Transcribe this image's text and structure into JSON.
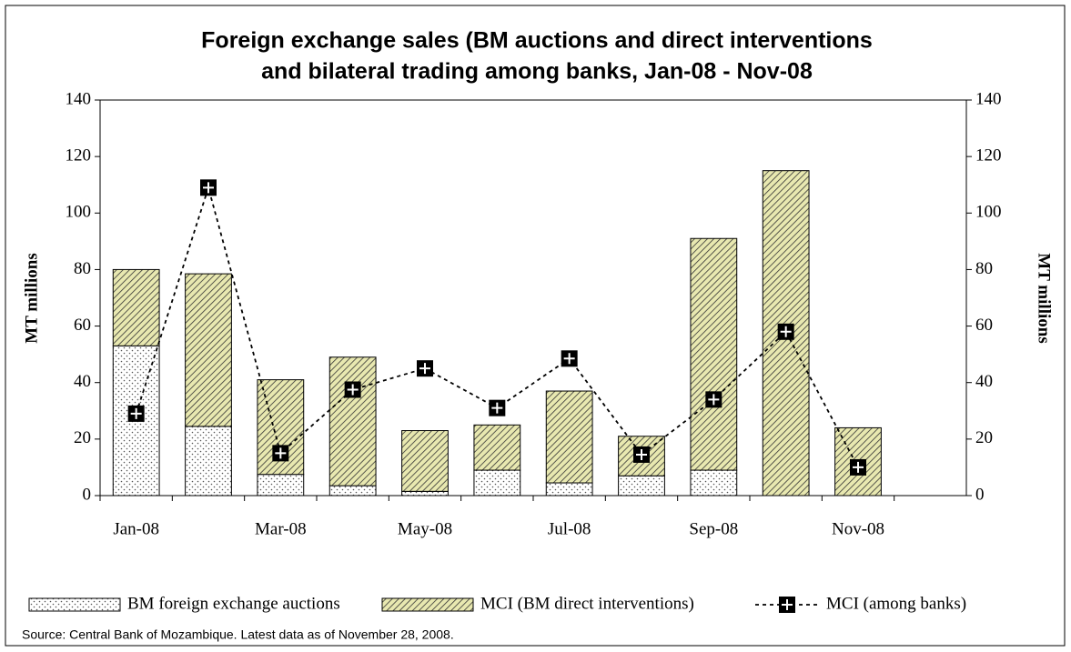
{
  "chart_data": {
    "type": "bar",
    "title": [
      "Foreign exchange sales (BM auctions and direct interventions",
      "and bilateral trading  among banks, Jan-08 - Nov-08"
    ],
    "y_label": "MT millions",
    "y2_label": "MT millions",
    "source": "Source: Central Bank of Mozambique. Latest data as of November 28, 2008.",
    "categories": [
      "Jan-08",
      null,
      "Mar-08",
      null,
      "May-08",
      null,
      "Jul-08",
      null,
      "Sep-08",
      null,
      "Nov-08",
      null
    ],
    "series": [
      {
        "name": "BM foreign exchange auctions",
        "type": "bar",
        "pattern": "dots",
        "color": "#ffffff",
        "values": [
          53,
          24.5,
          7.5,
          3.5,
          1.5,
          9,
          4.5,
          7,
          9,
          0,
          0,
          null
        ]
      },
      {
        "name": "MCI (BM direct interventions)",
        "type": "bar",
        "pattern": "hatch",
        "color": "#e8e8b0",
        "values": [
          27,
          54,
          33.5,
          45.5,
          21.5,
          16,
          32.5,
          14,
          82,
          115,
          24,
          null
        ]
      },
      {
        "name": "MCI (among banks)",
        "type": "line",
        "axis": "y2",
        "color": "#000000",
        "values": [
          29,
          109,
          15,
          37.5,
          45,
          31,
          48.5,
          14.5,
          34,
          58,
          10,
          null
        ]
      }
    ],
    "ylim": [
      0,
      140
    ],
    "yticks": [
      0,
      20,
      40,
      60,
      80,
      100,
      120,
      140
    ],
    "y2lim": [
      0,
      140
    ],
    "y2ticks": [
      0,
      20,
      40,
      60,
      80,
      100,
      120,
      140
    ],
    "stacked": true
  }
}
